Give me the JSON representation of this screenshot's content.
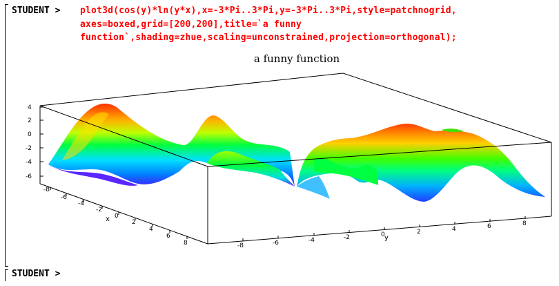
{
  "worksheet": {
    "prompt_label": "STUDENT >",
    "command_lines": [
      "plot3d(cos(y)*ln(y*x),x=-3*Pi..3*Pi,y=-3*Pi..3*Pi,style=patchnogrid,",
      "axes=boxed,grid=[200,200],title=`a funny",
      "function`,shading=zhue,scaling=unconstrained,projection=orthogonal);"
    ],
    "next_prompt_label": "STUDENT >"
  },
  "plot": {
    "title": "a funny function",
    "z_tick_labels": [
      "4",
      "2",
      "0",
      "-2",
      "-4",
      "-6"
    ],
    "x_axis_label": "x",
    "x_tick_labels": [
      "-8",
      "-6",
      "-4",
      "-2",
      "0",
      "2",
      "4",
      "6",
      "8"
    ],
    "y_axis_label": "y",
    "y_tick_labels": [
      "-8",
      "-6",
      "-4",
      "-2",
      "0",
      "2",
      "4",
      "6",
      "8"
    ],
    "colors": {
      "command": "#ff0000",
      "surface_high": "#ff3000",
      "surface_mid": "#00ff40",
      "surface_low": "#4020ff"
    }
  }
}
